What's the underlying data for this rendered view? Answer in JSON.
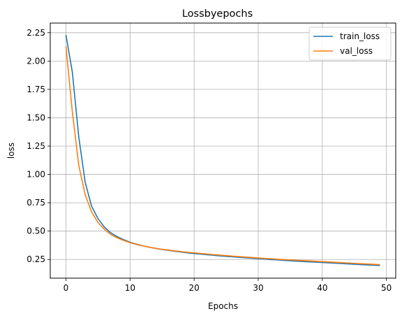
{
  "chart_data": {
    "type": "line",
    "title": "Lossbyepochs",
    "xlabel": "Epochs",
    "ylabel": "loss",
    "xlim": [
      -2.45,
      51.45
    ],
    "ylim": [
      0.085,
      2.335
    ],
    "xticks": [
      0,
      10,
      20,
      30,
      40,
      50
    ],
    "xtick_labels": [
      "0",
      "10",
      "20",
      "30",
      "40",
      "50"
    ],
    "yticks": [
      0.25,
      0.5,
      0.75,
      1.0,
      1.25,
      1.5,
      1.75,
      2.0,
      2.25
    ],
    "ytick_labels": [
      "0.25",
      "0.50",
      "0.75",
      "1.00",
      "1.25",
      "1.50",
      "1.75",
      "2.00",
      "2.25"
    ],
    "grid": true,
    "legend": "top-right",
    "x": [
      0,
      1,
      2,
      3,
      4,
      5,
      6,
      7,
      8,
      9,
      10,
      11,
      12,
      13,
      14,
      15,
      16,
      17,
      18,
      19,
      20,
      21,
      22,
      23,
      24,
      25,
      26,
      27,
      28,
      29,
      30,
      31,
      32,
      33,
      34,
      35,
      36,
      37,
      38,
      39,
      40,
      41,
      42,
      43,
      44,
      45,
      46,
      47,
      48,
      49
    ],
    "series": [
      {
        "name": "train_loss",
        "color": "#1f77b4",
        "values": [
          2.23,
          1.9,
          1.33,
          0.93,
          0.72,
          0.61,
          0.535,
          0.485,
          0.45,
          0.425,
          0.402,
          0.385,
          0.37,
          0.358,
          0.347,
          0.338,
          0.33,
          0.322,
          0.315,
          0.308,
          0.302,
          0.297,
          0.292,
          0.287,
          0.282,
          0.277,
          0.273,
          0.269,
          0.265,
          0.261,
          0.257,
          0.253,
          0.249,
          0.246,
          0.242,
          0.239,
          0.235,
          0.232,
          0.229,
          0.226,
          0.223,
          0.22,
          0.217,
          0.214,
          0.211,
          0.208,
          0.205,
          0.202,
          0.199,
          0.196
        ]
      },
      {
        "name": "val_loss",
        "color": "#ff7f0e",
        "values": [
          2.13,
          1.55,
          1.08,
          0.82,
          0.67,
          0.575,
          0.515,
          0.47,
          0.44,
          0.418,
          0.398,
          0.382,
          0.369,
          0.358,
          0.348,
          0.34,
          0.333,
          0.326,
          0.319,
          0.313,
          0.308,
          0.303,
          0.298,
          0.293,
          0.288,
          0.284,
          0.279,
          0.275,
          0.271,
          0.267,
          0.263,
          0.259,
          0.256,
          0.252,
          0.249,
          0.246,
          0.243,
          0.24,
          0.237,
          0.234,
          0.231,
          0.228,
          0.225,
          0.222,
          0.219,
          0.216,
          0.213,
          0.21,
          0.207,
          0.204
        ]
      }
    ]
  }
}
